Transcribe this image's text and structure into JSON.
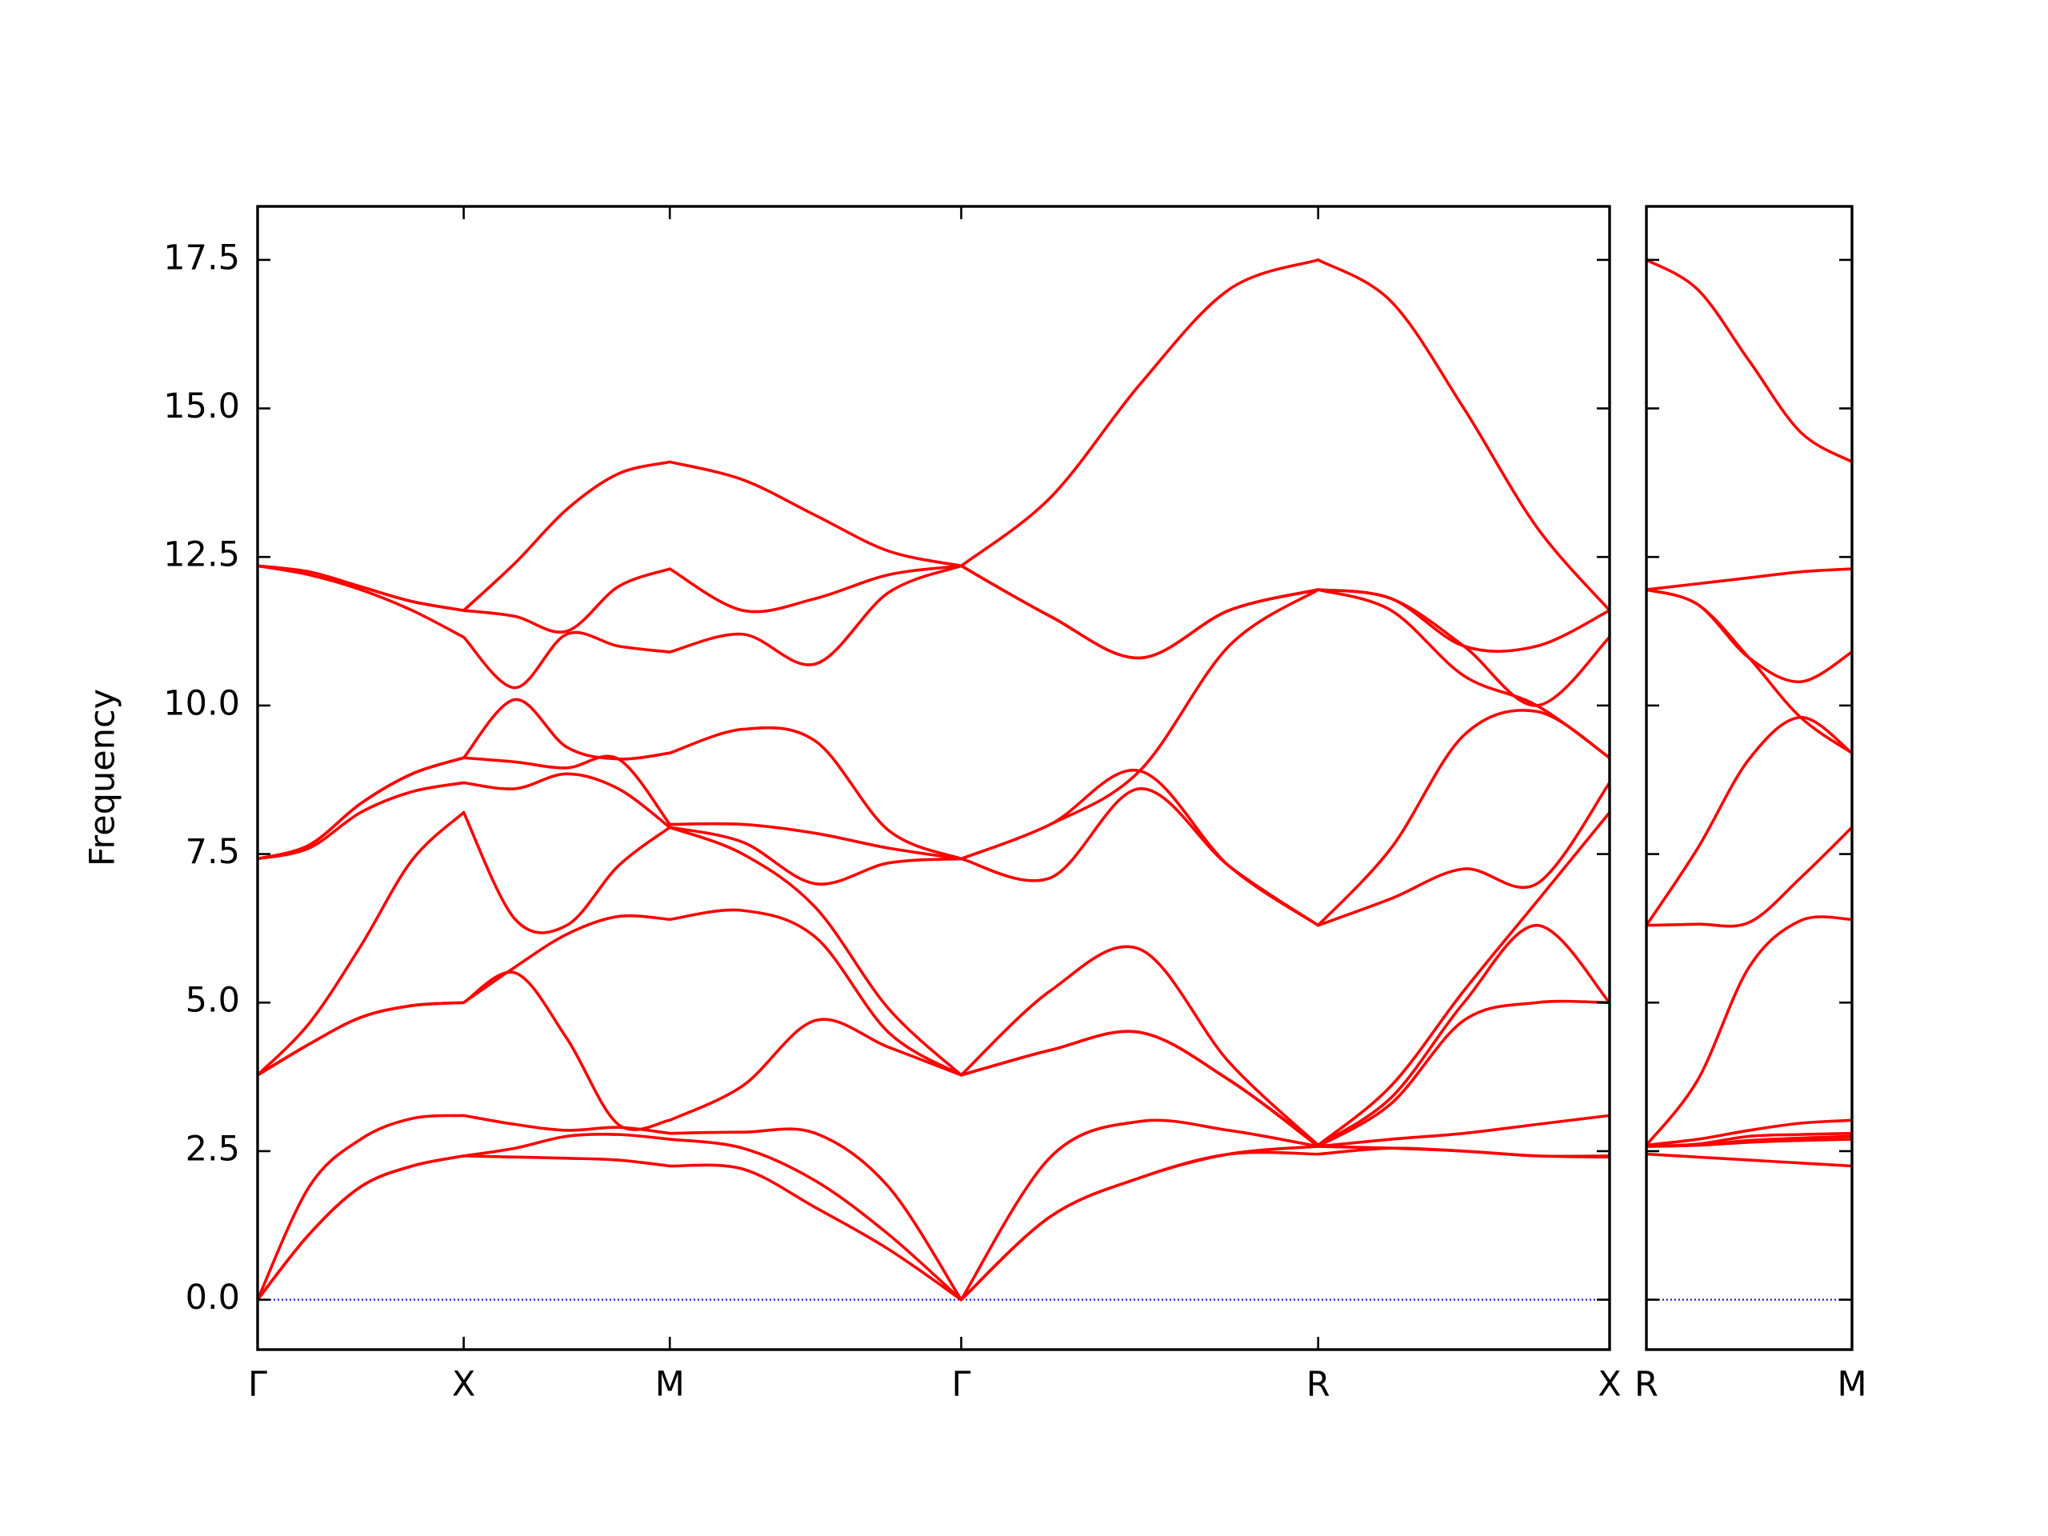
{
  "chart_data": [
    {
      "type": "line",
      "ylabel": "Frequency",
      "x": [
        0,
        0.25,
        0.5,
        0.75,
        1,
        1.25,
        1.5,
        1.75,
        2,
        2.354,
        2.707,
        3.061,
        3.414,
        3.847,
        4.28,
        4.713,
        5.146,
        5.5,
        5.853,
        6.207,
        6.56
      ],
      "xlim": [
        0,
        6.56
      ],
      "xticks": [
        {
          "value": 0,
          "label": "Γ"
        },
        {
          "value": 1,
          "label": "X"
        },
        {
          "value": 2,
          "label": "M"
        },
        {
          "value": 3.414,
          "label": "Γ"
        },
        {
          "value": 5.146,
          "label": "R"
        },
        {
          "value": 6.56,
          "label": "X"
        }
      ],
      "ylim": [
        -0.84,
        18.4
      ],
      "yticks": [
        {
          "value": 0,
          "label": "0.0"
        },
        2.5,
        {
          "value": 5,
          "label": "5.0"
        },
        7.5,
        {
          "value": 10,
          "label": "10.0"
        },
        12.5,
        {
          "value": 15,
          "label": "15.0"
        },
        17.5
      ],
      "reference_line": {
        "y": 0,
        "color": "#0000cd",
        "style": "dotted"
      },
      "series": [
        {
          "color": "#ff0000",
          "values": [
            0,
            1.1,
            1.9,
            2.25,
            2.42,
            2.4,
            2.38,
            2.35,
            2.25,
            2.2,
            1.55,
            0.85,
            0,
            1.4,
            2.05,
            2.45,
            2.45,
            2.55,
            2.5,
            2.42,
            2.4
          ]
        },
        {
          "color": "#ff0000",
          "values": [
            0,
            1.1,
            1.9,
            2.25,
            2.42,
            2.55,
            2.75,
            2.78,
            2.7,
            2.55,
            2.0,
            1.1,
            0,
            1.4,
            2.05,
            2.45,
            2.58,
            2.55,
            2.5,
            2.42,
            2.42
          ]
        },
        {
          "color": "#ff0000",
          "values": [
            0,
            1.9,
            2.7,
            3.05,
            3.1,
            2.95,
            2.85,
            2.9,
            2.8,
            2.82,
            2.8,
            1.9,
            0,
            2.4,
            3.0,
            2.85,
            2.58,
            2.7,
            2.8,
            2.95,
            3.1
          ]
        },
        {
          "color": "#ff0000",
          "values": [
            3.78,
            4.3,
            4.75,
            4.95,
            5.0,
            5.5,
            4.4,
            2.95,
            3.02,
            3.6,
            4.7,
            4.25,
            3.78,
            4.2,
            4.5,
            3.7,
            2.58,
            3.3,
            4.7,
            5.0,
            5.0
          ]
        },
        {
          "color": "#ff0000",
          "values": [
            3.78,
            4.3,
            4.75,
            4.95,
            5.0,
            5.6,
            6.15,
            6.45,
            6.4,
            6.55,
            6.1,
            4.5,
            3.78,
            4.2,
            4.5,
            3.7,
            2.6,
            3.4,
            5.0,
            6.3,
            5.0
          ]
        },
        {
          "color": "#ff0000",
          "values": [
            3.78,
            4.65,
            5.95,
            7.4,
            8.2,
            6.4,
            6.3,
            7.3,
            7.95,
            7.5,
            6.6,
            4.9,
            3.78,
            5.2,
            5.9,
            4.0,
            2.6,
            3.6,
            5.2,
            6.7,
            8.2
          ]
        },
        {
          "color": "#ff0000",
          "values": [
            7.42,
            7.6,
            8.2,
            8.55,
            8.7,
            8.6,
            8.85,
            8.6,
            7.95,
            7.7,
            7.0,
            7.35,
            7.42,
            7.1,
            8.6,
            7.3,
            6.3,
            6.75,
            7.25,
            7.0,
            8.7
          ]
        },
        {
          "color": "#ff0000",
          "values": [
            7.42,
            7.65,
            8.35,
            8.85,
            9.12,
            9.05,
            8.95,
            9.1,
            8.0,
            8.0,
            7.85,
            7.6,
            7.42,
            8.0,
            8.9,
            7.3,
            6.3,
            7.6,
            9.5,
            9.9,
            9.12
          ]
        },
        {
          "color": "#ff0000",
          "values": [
            7.42,
            7.65,
            8.35,
            8.85,
            9.12,
            10.1,
            9.3,
            9.1,
            9.2,
            9.6,
            9.4,
            7.9,
            7.42,
            8.0,
            8.9,
            11.0,
            11.95,
            11.6,
            10.5,
            10.0,
            9.12
          ]
        },
        {
          "color": "#ff0000",
          "values": [
            12.35,
            12.2,
            11.95,
            11.6,
            11.15,
            10.3,
            11.2,
            11.0,
            10.9,
            11.2,
            10.7,
            11.9,
            12.35,
            11.5,
            10.8,
            11.6,
            11.95,
            11.8,
            11.0,
            10.0,
            11.15
          ]
        },
        {
          "color": "#ff0000",
          "values": [
            12.35,
            12.25,
            12.0,
            11.75,
            11.6,
            11.5,
            11.25,
            12.0,
            12.3,
            11.6,
            11.8,
            12.2,
            12.35,
            11.5,
            10.8,
            11.6,
            11.95,
            11.8,
            11.0,
            11.0,
            11.6
          ]
        },
        {
          "color": "#ff0000",
          "values": [
            12.35,
            12.25,
            12.0,
            11.75,
            11.6,
            12.4,
            13.3,
            13.9,
            14.1,
            13.8,
            13.2,
            12.6,
            12.35,
            13.5,
            15.4,
            17.0,
            17.5,
            16.8,
            15.0,
            13.0,
            11.6
          ]
        }
      ]
    },
    {
      "type": "line",
      "x": [
        0,
        0.25,
        0.5,
        0.75,
        1
      ],
      "xlim": [
        0,
        1
      ],
      "xticks": [
        {
          "value": 0,
          "label": "R"
        },
        {
          "value": 1,
          "label": "M"
        }
      ],
      "reference_line": {
        "y": 0,
        "color": "#0000cd",
        "style": "dotted"
      },
      "series": [
        {
          "color": "#ff0000",
          "values": [
            2.45,
            2.4,
            2.35,
            2.3,
            2.25
          ]
        },
        {
          "color": "#ff0000",
          "values": [
            2.58,
            2.6,
            2.65,
            2.68,
            2.7
          ]
        },
        {
          "color": "#ff0000",
          "values": [
            2.58,
            2.6,
            2.68,
            2.72,
            2.75
          ]
        },
        {
          "color": "#ff0000",
          "values": [
            2.58,
            2.62,
            2.75,
            2.78,
            2.8
          ]
        },
        {
          "color": "#ff0000",
          "values": [
            2.6,
            2.7,
            2.85,
            2.97,
            3.02
          ]
        },
        {
          "color": "#ff0000",
          "values": [
            2.6,
            3.7,
            5.6,
            6.38,
            6.4
          ]
        },
        {
          "color": "#ff0000",
          "values": [
            6.3,
            6.32,
            6.35,
            7.1,
            7.95
          ]
        },
        {
          "color": "#ff0000",
          "values": [
            6.3,
            7.6,
            9.1,
            9.8,
            9.2
          ]
        },
        {
          "color": "#ff0000",
          "values": [
            11.95,
            11.7,
            10.8,
            9.8,
            9.2
          ]
        },
        {
          "color": "#ff0000",
          "values": [
            11.95,
            11.7,
            10.8,
            10.4,
            10.9
          ]
        },
        {
          "color": "#ff0000",
          "values": [
            11.95,
            12.05,
            12.15,
            12.25,
            12.3
          ]
        },
        {
          "color": "#ff0000",
          "values": [
            17.5,
            17.0,
            15.8,
            14.6,
            14.1
          ]
        }
      ]
    }
  ]
}
